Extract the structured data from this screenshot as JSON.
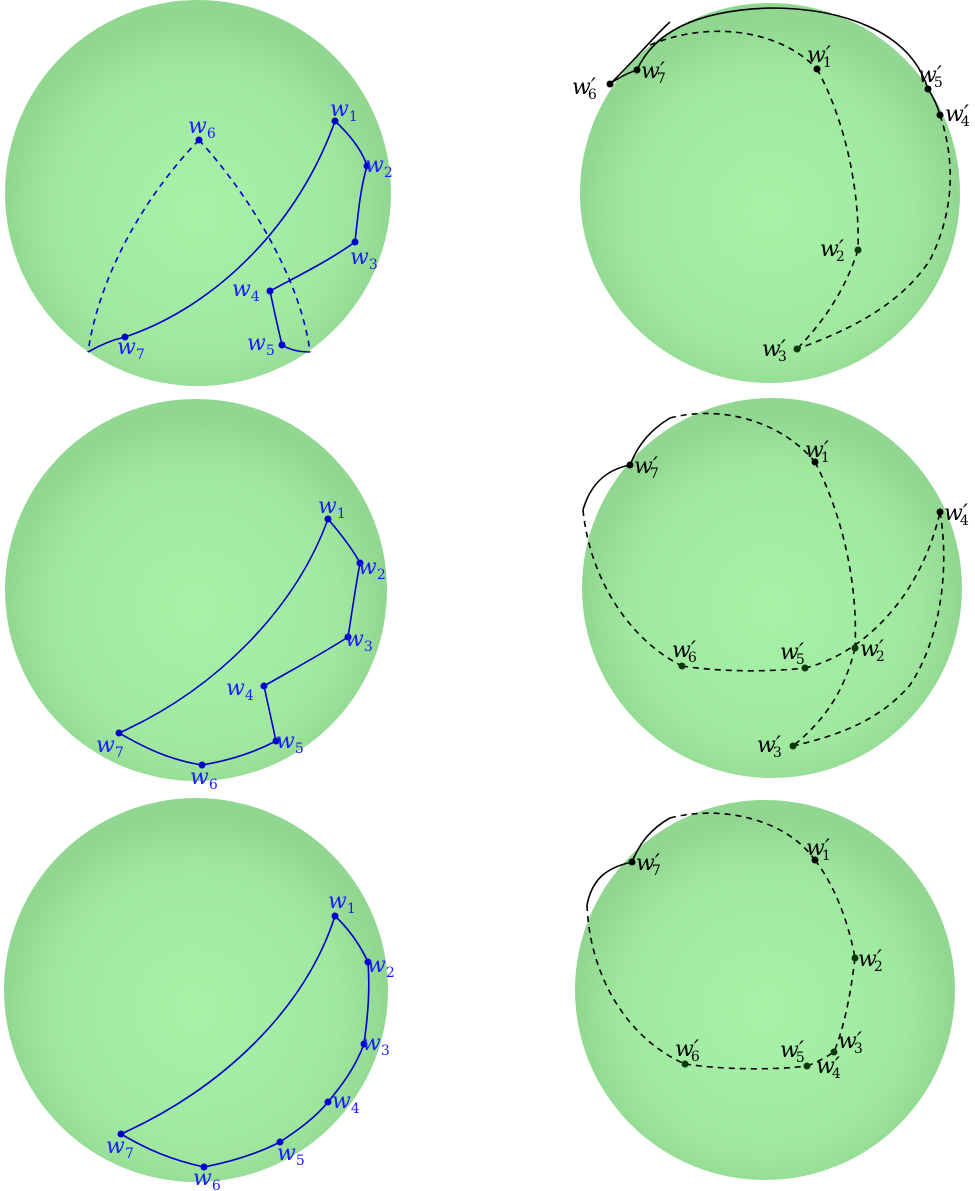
{
  "colors": {
    "sphere_center": "#a8f2a8",
    "sphere_edge": "#93d993",
    "blue_path": "#0000cc",
    "blue_label": "#1a1aff",
    "black_path": "#000000",
    "dark_point": "#0a3a0a"
  },
  "panels": [
    {
      "id": "row1-left",
      "labels": [
        {
          "base": "w",
          "sub": "1",
          "prime": false
        },
        {
          "base": "w",
          "sub": "2",
          "prime": false
        },
        {
          "base": "w",
          "sub": "3",
          "prime": false
        },
        {
          "base": "w",
          "sub": "4",
          "prime": false
        },
        {
          "base": "w",
          "sub": "5",
          "prime": false
        },
        {
          "base": "w",
          "sub": "6",
          "prime": false
        },
        {
          "base": "w",
          "sub": "7",
          "prime": false
        }
      ]
    },
    {
      "id": "row1-right",
      "labels": [
        {
          "base": "w",
          "sub": "1",
          "prime": true
        },
        {
          "base": "w",
          "sub": "2",
          "prime": true
        },
        {
          "base": "w",
          "sub": "3",
          "prime": true
        },
        {
          "base": "w",
          "sub": "4",
          "prime": true
        },
        {
          "base": "w",
          "sub": "5",
          "prime": true
        },
        {
          "base": "w",
          "sub": "6",
          "prime": true
        },
        {
          "base": "w",
          "sub": "7",
          "prime": true
        }
      ]
    },
    {
      "id": "row2-left",
      "labels": [
        {
          "base": "w",
          "sub": "1",
          "prime": false
        },
        {
          "base": "w",
          "sub": "2",
          "prime": false
        },
        {
          "base": "w",
          "sub": "3",
          "prime": false
        },
        {
          "base": "w",
          "sub": "4",
          "prime": false
        },
        {
          "base": "w",
          "sub": "5",
          "prime": false
        },
        {
          "base": "w",
          "sub": "6",
          "prime": false
        },
        {
          "base": "w",
          "sub": "7",
          "prime": false
        }
      ]
    },
    {
      "id": "row2-right",
      "labels": [
        {
          "base": "w",
          "sub": "1",
          "prime": true
        },
        {
          "base": "w",
          "sub": "2",
          "prime": true
        },
        {
          "base": "w",
          "sub": "3",
          "prime": true
        },
        {
          "base": "w",
          "sub": "4",
          "prime": true
        },
        {
          "base": "w",
          "sub": "5",
          "prime": true
        },
        {
          "base": "w",
          "sub": "6",
          "prime": true
        },
        {
          "base": "w",
          "sub": "7",
          "prime": true
        }
      ]
    },
    {
      "id": "row3-left",
      "labels": [
        {
          "base": "w",
          "sub": "1",
          "prime": false
        },
        {
          "base": "w",
          "sub": "2",
          "prime": false
        },
        {
          "base": "w",
          "sub": "3",
          "prime": false
        },
        {
          "base": "w",
          "sub": "4",
          "prime": false
        },
        {
          "base": "w",
          "sub": "5",
          "prime": false
        },
        {
          "base": "w",
          "sub": "6",
          "prime": false
        },
        {
          "base": "w",
          "sub": "7",
          "prime": false
        }
      ]
    },
    {
      "id": "row3-right",
      "labels": [
        {
          "base": "w",
          "sub": "1",
          "prime": true
        },
        {
          "base": "w",
          "sub": "2",
          "prime": true
        },
        {
          "base": "w",
          "sub": "3",
          "prime": true
        },
        {
          "base": "w",
          "sub": "4",
          "prime": true
        },
        {
          "base": "w",
          "sub": "5",
          "prime": true
        },
        {
          "base": "w",
          "sub": "6",
          "prime": true
        },
        {
          "base": "w",
          "sub": "7",
          "prime": true
        }
      ]
    }
  ]
}
